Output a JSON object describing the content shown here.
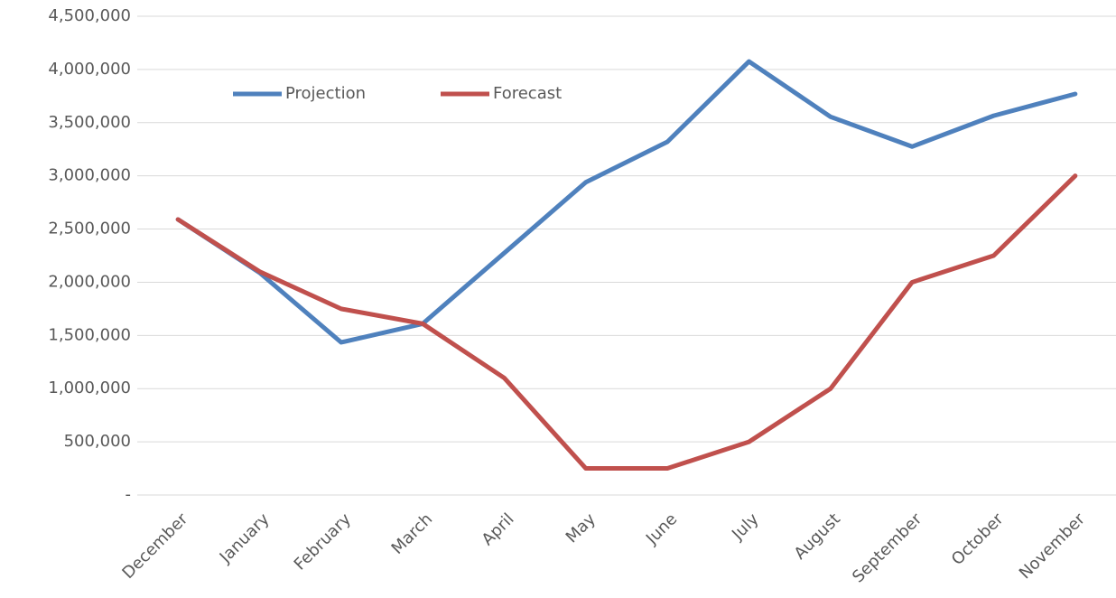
{
  "chart_data": {
    "type": "line",
    "categories": [
      "December",
      "January",
      "February",
      "March",
      "April",
      "May",
      "June",
      "July",
      "August",
      "September",
      "October",
      "November"
    ],
    "series": [
      {
        "name": "Projection",
        "color": "#4f81bd",
        "values": [
          2590000,
          2090000,
          1435000,
          1610000,
          2275000,
          2940000,
          3320000,
          4075000,
          3555000,
          3275000,
          3565000,
          3770000
        ]
      },
      {
        "name": "Forecast",
        "color": "#c0504d",
        "values": [
          2590000,
          2100000,
          1750000,
          1610000,
          1100000,
          250000,
          250000,
          500000,
          1000000,
          2000000,
          2250000,
          3000000
        ]
      }
    ],
    "ylim": [
      0,
      4500000
    ],
    "yticks": [
      {
        "value": 0,
        "label": "-"
      },
      {
        "value": 500000,
        "label": "500,000"
      },
      {
        "value": 1000000,
        "label": "1,000,000"
      },
      {
        "value": 1500000,
        "label": "1,500,000"
      },
      {
        "value": 2000000,
        "label": "2,000,000"
      },
      {
        "value": 2500000,
        "label": "2,500,000"
      },
      {
        "value": 3000000,
        "label": "3,000,000"
      },
      {
        "value": 3500000,
        "label": "3,500,000"
      },
      {
        "value": 4000000,
        "label": "4,000,000"
      },
      {
        "value": 4500000,
        "label": "4,500,000"
      }
    ],
    "grid": true,
    "legend": "top"
  }
}
